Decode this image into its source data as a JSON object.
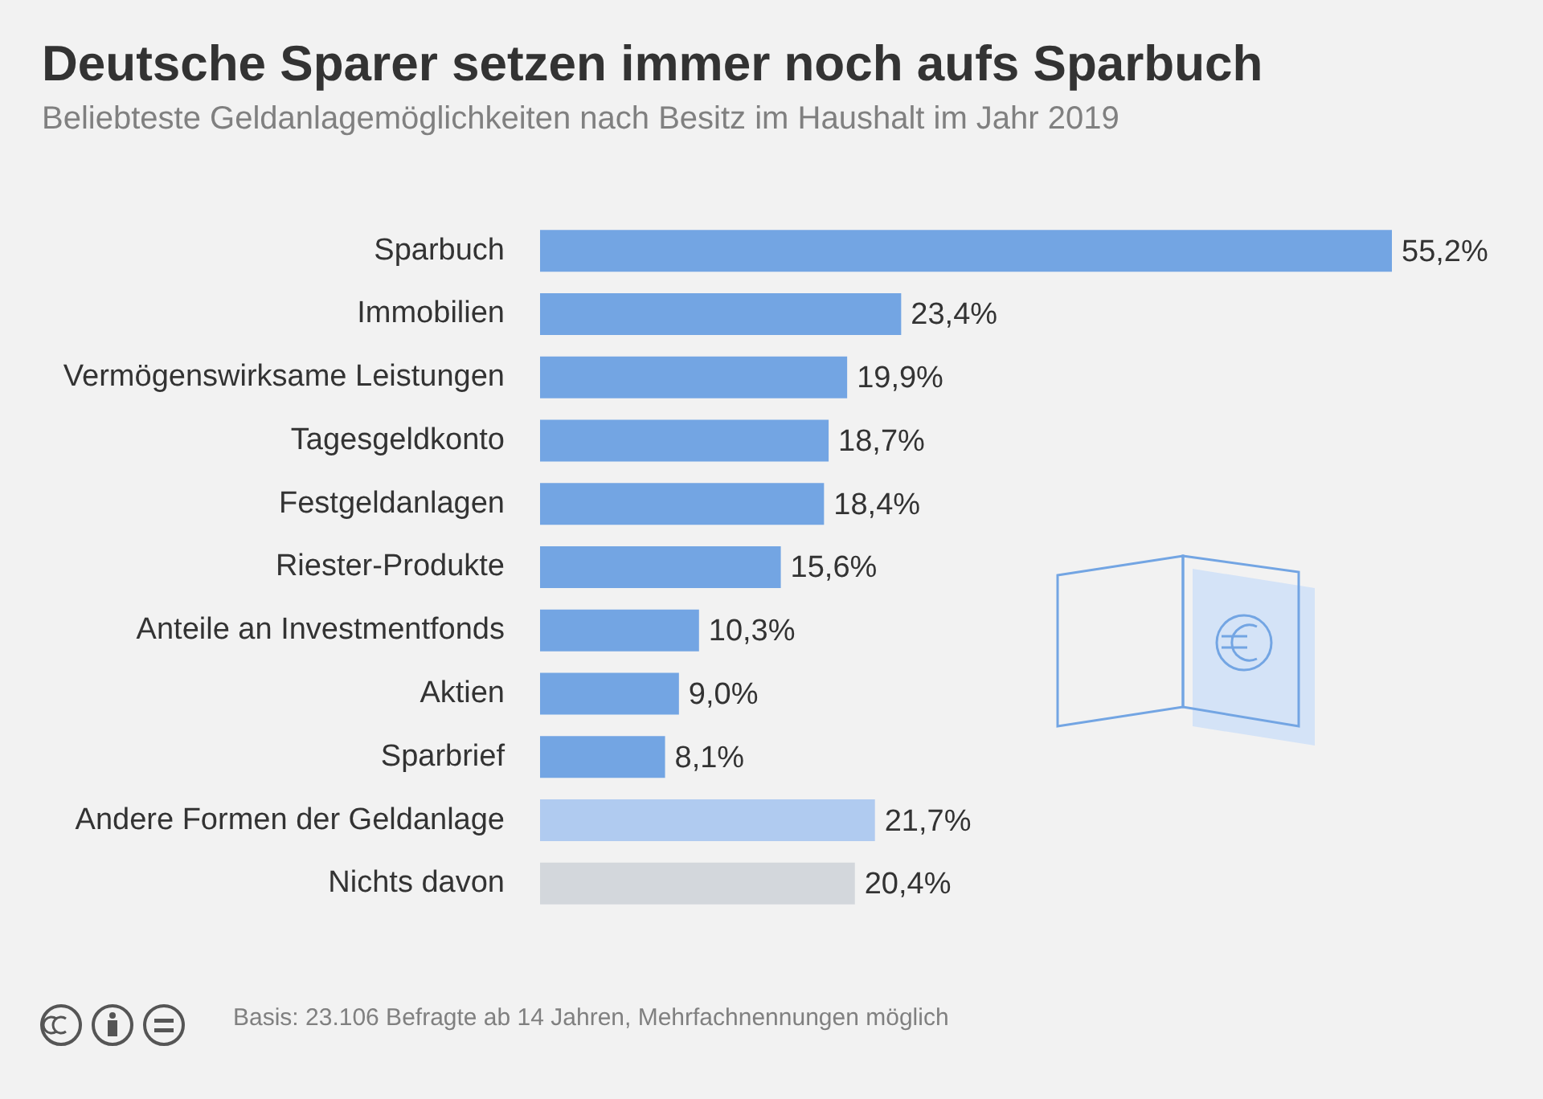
{
  "chart_data": {
    "type": "bar",
    "orientation": "horizontal",
    "title": "Deutsche Sparer setzen immer noch aufs Sparbuch",
    "subtitle": "Beliebteste Geldanlagemöglichkeiten nach Besitz im Haushalt im Jahr 2019",
    "categories": [
      "Sparbuch",
      "Immobilien",
      "Vermögenswirksame Leistungen",
      "Tagesgeldkonto",
      "Festgeldanlagen",
      "Riester-Produkte",
      "Anteile an Investmentfonds",
      "Aktien",
      "Sparbrief",
      "Andere Formen der Geldanlage",
      "Nichts davon"
    ],
    "values": [
      55.2,
      23.4,
      19.9,
      18.7,
      18.4,
      15.6,
      10.3,
      9.0,
      8.1,
      21.7,
      20.4
    ],
    "value_labels": [
      "55,2%",
      "23,4%",
      "19,9%",
      "18,7%",
      "18,4%",
      "15,6%",
      "10,3%",
      "9,0%",
      "8,1%",
      "21,7%",
      "20,4%"
    ],
    "colors": [
      "#73a5e3",
      "#73a5e3",
      "#73a5e3",
      "#73a5e3",
      "#73a5e3",
      "#73a5e3",
      "#73a5e3",
      "#73a5e3",
      "#73a5e3",
      "#b0cbf0",
      "#d3d7dc"
    ],
    "legend": false,
    "annotations": [
      "Basis: 23.106 Befragte ab 14 Jahren, Mehrfachnennungen möglich"
    ]
  }
}
